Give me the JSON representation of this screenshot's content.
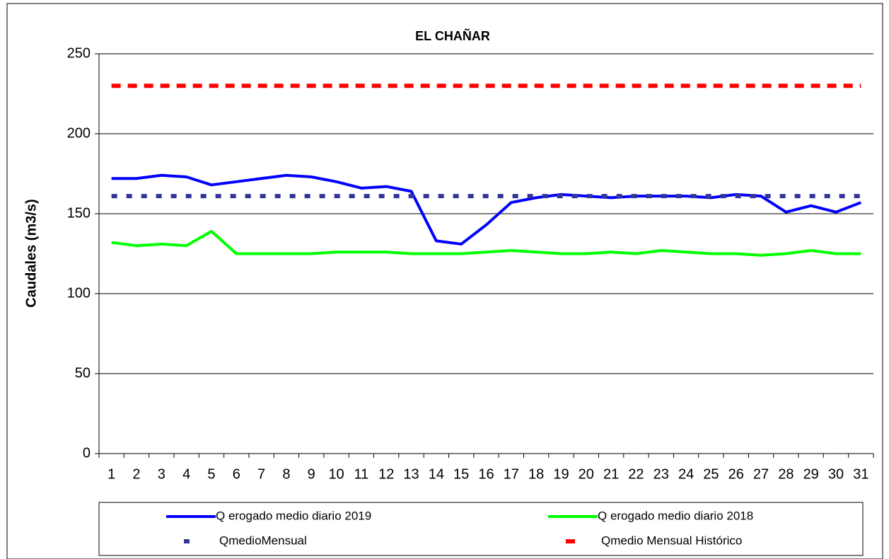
{
  "chart_data": {
    "type": "line",
    "title": "EL CHAÑAR",
    "y_label": "Caudales (m3/s)",
    "categories": [
      1,
      2,
      3,
      4,
      5,
      6,
      7,
      8,
      9,
      10,
      11,
      12,
      13,
      14,
      15,
      16,
      17,
      18,
      19,
      20,
      21,
      22,
      23,
      24,
      25,
      26,
      27,
      28,
      29,
      30,
      31
    ],
    "ylim": [
      0,
      250
    ],
    "yticks": [
      0,
      50,
      100,
      150,
      200,
      250
    ],
    "grid": true,
    "legend": "bottom",
    "series": [
      {
        "name": "Q erogado medio diario 2019",
        "color": "#0000ff",
        "style": "solid",
        "values": [
          172,
          172,
          174,
          173,
          168,
          170,
          172,
          174,
          173,
          170,
          166,
          167,
          164,
          133,
          131,
          143,
          157,
          160,
          162,
          161,
          160,
          161,
          161,
          161,
          160,
          162,
          161,
          151,
          155,
          151,
          157
        ]
      },
      {
        "name": "Q erogado medio diario 2018",
        "color": "#00ff00",
        "style": "solid",
        "values": [
          132,
          130,
          131,
          130,
          139,
          125,
          125,
          125,
          125,
          126,
          126,
          126,
          125,
          125,
          125,
          126,
          127,
          126,
          125,
          125,
          126,
          125,
          127,
          126,
          125,
          125,
          124,
          125,
          127,
          125,
          125
        ]
      },
      {
        "name": "QmedioMensual",
        "color": "#333399",
        "style": "dotted",
        "values": [
          161,
          161,
          161,
          161,
          161,
          161,
          161,
          161,
          161,
          161,
          161,
          161,
          161,
          161,
          161,
          161,
          161,
          161,
          161,
          161,
          161,
          161,
          161,
          161,
          161,
          161,
          161,
          161,
          161,
          161,
          161
        ]
      },
      {
        "name": "Qmedio Mensual Histórico",
        "color": "#ff0000",
        "style": "dashed",
        "values": [
          230,
          230,
          230,
          230,
          230,
          230,
          230,
          230,
          230,
          230,
          230,
          230,
          230,
          230,
          230,
          230,
          230,
          230,
          230,
          230,
          230,
          230,
          230,
          230,
          230,
          230,
          230,
          230,
          230,
          230,
          230
        ]
      }
    ]
  }
}
